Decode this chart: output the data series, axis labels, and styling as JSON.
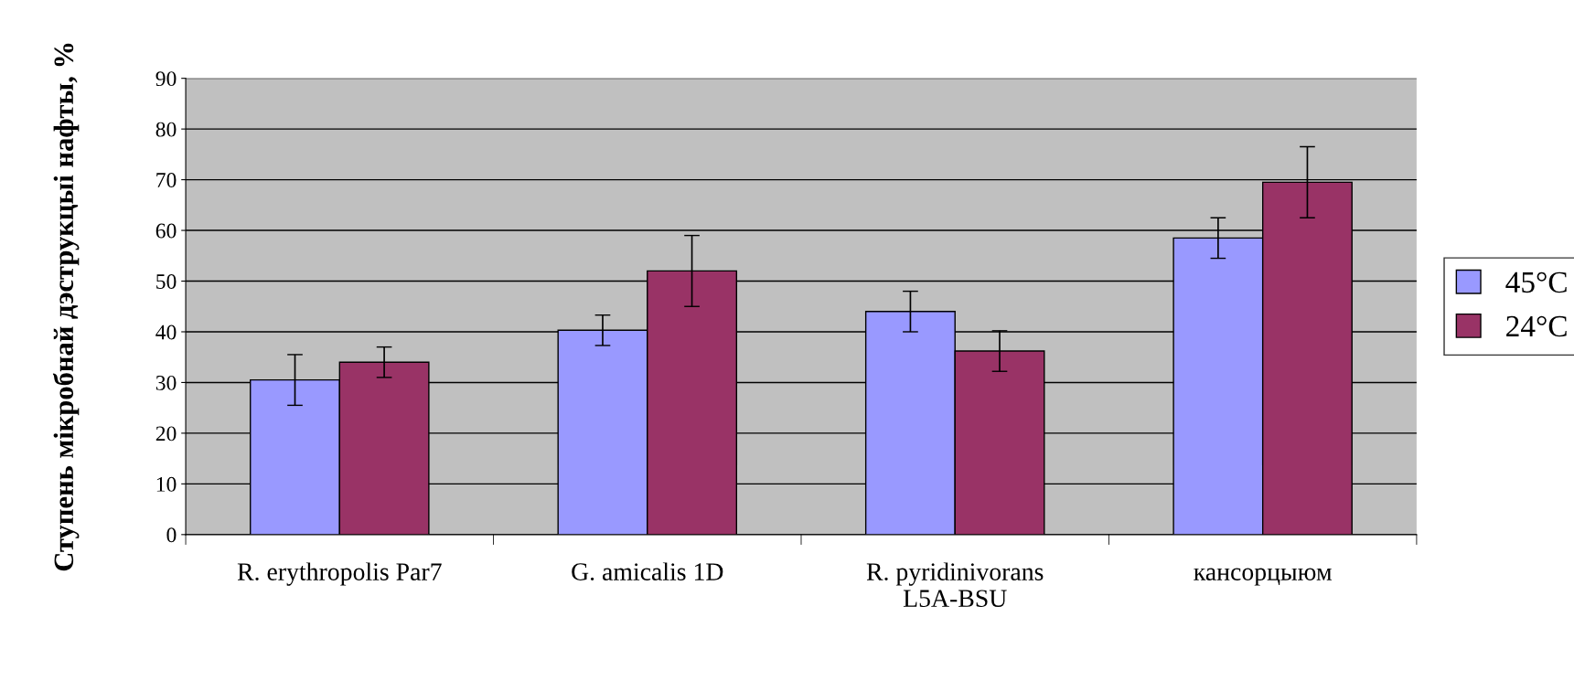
{
  "chart_data": {
    "type": "bar",
    "ylabel": "Ступень мікробнай дэструкцыі нафты, %",
    "categories": [
      "R. erythropolis Par7",
      "G. amicalis 1D",
      "R. pyridinivorans\nL5A-BSU",
      "кансорцыюм"
    ],
    "series": [
      {
        "name": "45°C",
        "color": "#9999ff",
        "values": [
          30.5,
          40.3,
          44,
          58.5
        ],
        "errors": [
          5,
          3,
          4,
          4
        ]
      },
      {
        "name": "24°C",
        "color": "#993366",
        "values": [
          34,
          52,
          36.2,
          69.5
        ],
        "errors": [
          3,
          7,
          4,
          7
        ]
      }
    ],
    "ylim": [
      0,
      90
    ],
    "yticks": [
      0,
      10,
      20,
      30,
      40,
      50,
      60,
      70,
      80,
      90
    ],
    "grid": "y",
    "legend": "right"
  }
}
